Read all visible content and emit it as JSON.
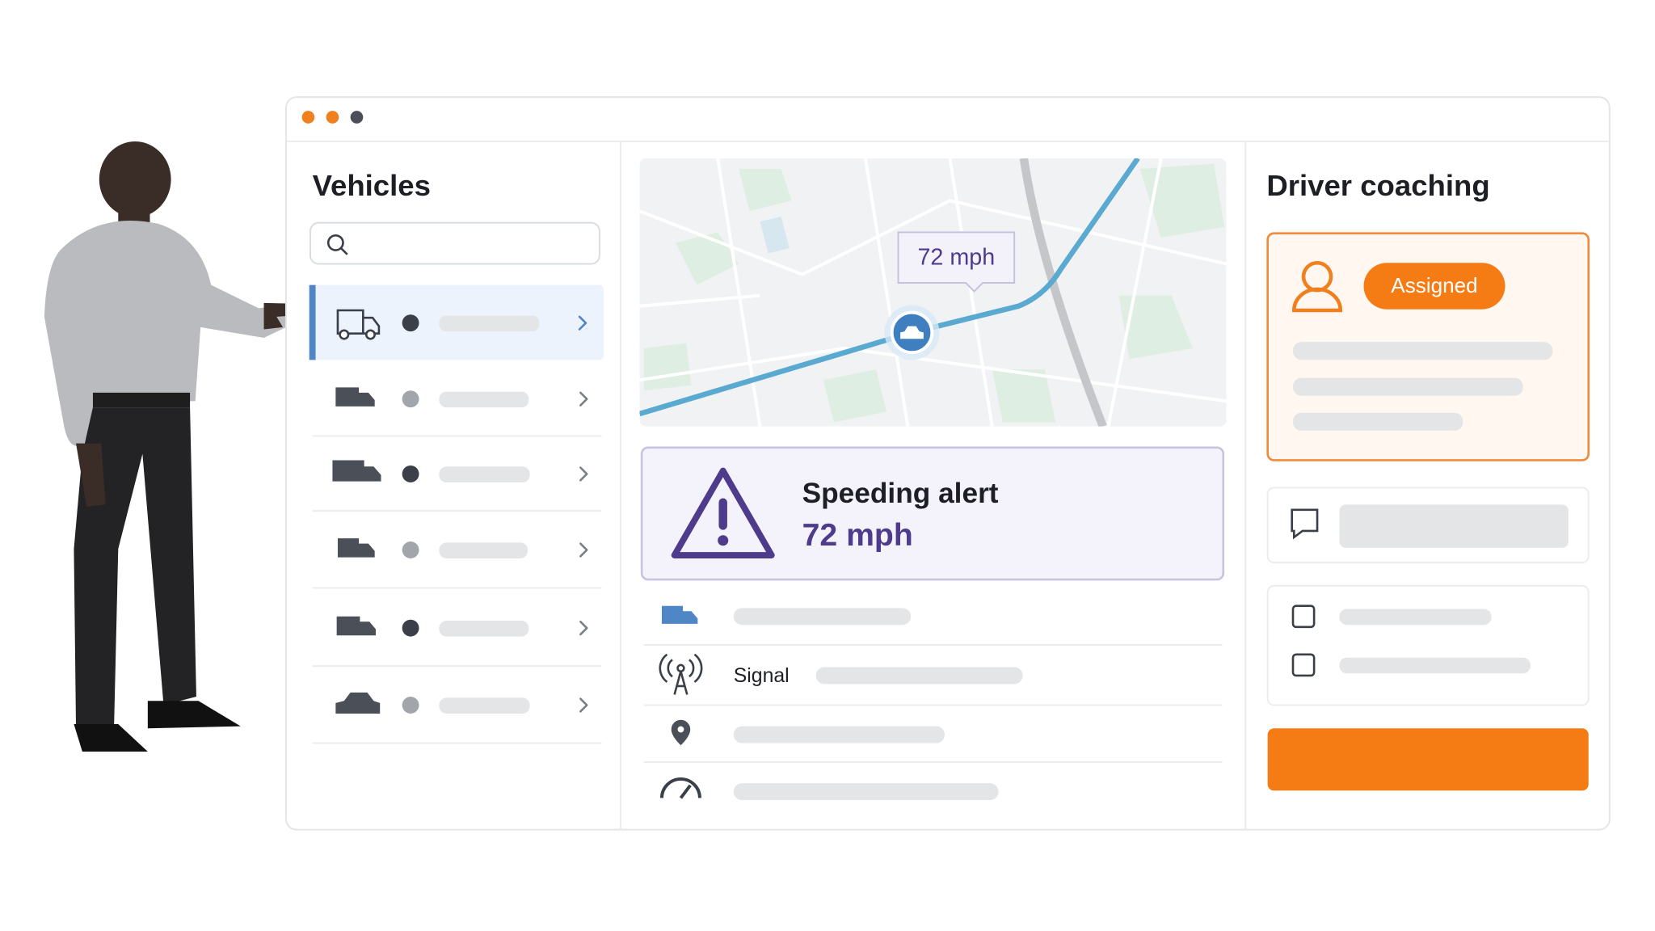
{
  "vehicles_panel": {
    "title": "Vehicles"
  },
  "map": {
    "speed_bubble": "72 mph"
  },
  "alert": {
    "title": "Speeding alert",
    "speed": "72 mph"
  },
  "details": {
    "signal_label": "Signal"
  },
  "coaching_panel": {
    "title": "Driver coaching",
    "status": "Assigned"
  }
}
